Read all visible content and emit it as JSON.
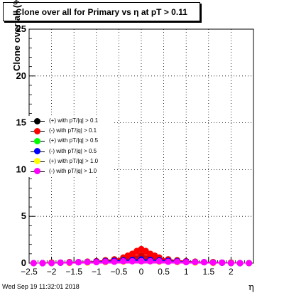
{
  "chart_data": {
    "type": "scatter",
    "title": "Clone  over all for Primary vs   η at pT > 0.11",
    "xlabel": "η",
    "ylabel": "Clone  over all (%)",
    "xlim": [
      -2.5,
      2.5
    ],
    "ylim": [
      0,
      25
    ],
    "x_ticks": [
      -2.5,
      -2,
      -1.5,
      -1,
      -0.5,
      0,
      0.5,
      1,
      1.5,
      2
    ],
    "x_tick_labels": [
      "−2.5",
      "−2",
      "−1.5",
      "−1",
      "−0.5",
      "0",
      "0.5",
      "1",
      "1.5",
      "2"
    ],
    "y_ticks": [
      0,
      5,
      10,
      15,
      20,
      25
    ],
    "grid": true,
    "legend_position": "middle-left",
    "footer": "Wed Sep 19 11:32:01 2018",
    "series": [
      {
        "name": "(+) with pT/|q| > 0.1",
        "color": "#000000",
        "x": [
          -2.4,
          -2.2,
          -2.0,
          -1.8,
          -1.6,
          -1.4,
          -1.2,
          -1.0,
          -0.8,
          -0.6,
          -0.4,
          -0.2,
          0.0,
          0.2,
          0.4,
          0.6,
          0.8,
          1.0,
          1.2,
          1.4,
          1.6,
          1.8,
          2.0,
          2.2,
          2.4
        ],
        "y": [
          0.0,
          0.0,
          0.05,
          0.05,
          0.1,
          0.1,
          0.15,
          0.2,
          0.3,
          0.4,
          0.5,
          0.7,
          0.8,
          0.7,
          0.5,
          0.4,
          0.3,
          0.2,
          0.15,
          0.1,
          0.1,
          0.05,
          0.05,
          0.0,
          0.0
        ]
      },
      {
        "name": "(-) with pT/|q| > 0.1",
        "color": "#ff0000",
        "x": [
          -2.4,
          -2.2,
          -2.0,
          -1.8,
          -1.6,
          -1.4,
          -1.2,
          -1.0,
          -0.8,
          -0.6,
          -0.4,
          -0.3,
          -0.2,
          -0.1,
          0.0,
          0.1,
          0.2,
          0.3,
          0.4,
          0.6,
          0.8,
          1.0,
          1.2,
          1.4,
          1.6,
          1.8,
          2.0,
          2.2,
          2.4
        ],
        "y": [
          0.0,
          0.0,
          0.05,
          0.05,
          0.1,
          0.1,
          0.15,
          0.2,
          0.3,
          0.4,
          0.6,
          0.8,
          1.0,
          1.3,
          1.5,
          1.3,
          1.0,
          0.8,
          0.6,
          0.4,
          0.3,
          0.2,
          0.15,
          0.1,
          0.1,
          0.05,
          0.05,
          0.0,
          0.0
        ]
      },
      {
        "name": "(+) with pT/|q| > 0.5",
        "color": "#00ff00",
        "x": [
          -2.4,
          -2.0,
          -1.6,
          -1.2,
          -0.8,
          -0.4,
          0.0,
          0.4,
          0.8,
          1.2,
          1.6,
          2.0,
          2.4
        ],
        "y": [
          0.0,
          0.0,
          0.05,
          0.1,
          0.2,
          0.3,
          0.4,
          0.3,
          0.2,
          0.1,
          0.05,
          0.0,
          0.0
        ]
      },
      {
        "name": "(-) with pT/|q| > 0.5",
        "color": "#0000ff",
        "x": [
          -2.4,
          -2.2,
          -2.0,
          -1.8,
          -1.6,
          -1.4,
          -1.2,
          -1.0,
          -0.8,
          -0.6,
          -0.4,
          -0.2,
          0.0,
          0.2,
          0.4,
          0.6,
          0.8,
          1.0,
          1.2,
          1.4,
          1.6,
          1.8,
          2.0,
          2.2,
          2.4
        ],
        "y": [
          0.0,
          0.0,
          0.0,
          0.05,
          0.05,
          0.1,
          0.1,
          0.15,
          0.2,
          0.25,
          0.3,
          0.35,
          0.4,
          0.35,
          0.3,
          0.25,
          0.2,
          0.15,
          0.1,
          0.1,
          0.05,
          0.05,
          0.0,
          0.0,
          0.0
        ]
      },
      {
        "name": "(+) with pT/|q| > 1.0",
        "color": "#ffff00",
        "x": [
          -2.4,
          -2.0,
          -1.6,
          -1.2,
          -0.8,
          -0.4,
          0.0,
          0.4,
          0.8,
          1.2,
          1.6,
          2.0,
          2.4
        ],
        "y": [
          0.0,
          0.0,
          0.0,
          0.05,
          0.1,
          0.15,
          0.2,
          0.15,
          0.1,
          0.05,
          0.0,
          0.0,
          0.0
        ]
      },
      {
        "name": "(-) with pT/|q| > 1.0",
        "color": "#ff00ff",
        "x": [
          -2.4,
          -2.2,
          -2.0,
          -1.8,
          -1.6,
          -1.4,
          -1.2,
          -1.0,
          -0.8,
          -0.6,
          -0.4,
          -0.2,
          0.0,
          0.2,
          0.4,
          0.6,
          0.8,
          1.0,
          1.2,
          1.4,
          1.6,
          1.8,
          2.0,
          2.2,
          2.4
        ],
        "y": [
          0.0,
          0.0,
          0.0,
          0.05,
          0.05,
          0.1,
          0.1,
          0.1,
          0.15,
          0.15,
          0.2,
          0.2,
          0.2,
          0.2,
          0.2,
          0.15,
          0.15,
          0.1,
          0.1,
          0.1,
          0.05,
          0.05,
          0.0,
          0.0,
          0.0
        ]
      }
    ]
  }
}
